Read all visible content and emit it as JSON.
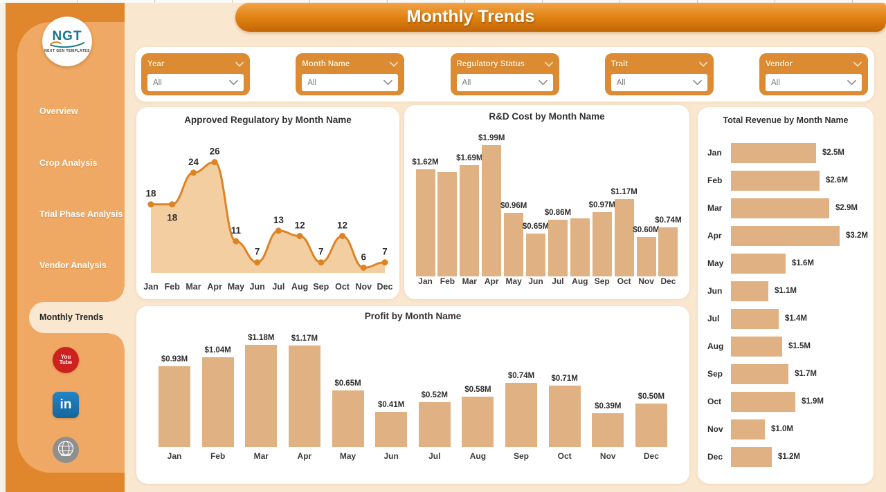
{
  "header": {
    "title": "Monthly Trends"
  },
  "sidebar": {
    "logo": {
      "text": "NGT",
      "subtext": "NEXT GEN TEMPLATES"
    },
    "items": [
      {
        "label": "Overview",
        "active": false
      },
      {
        "label": "Crop Analysis",
        "active": false
      },
      {
        "label": "Trial Phase Analysis",
        "active": false
      },
      {
        "label": "Vendor Analysis",
        "active": false
      },
      {
        "label": "Monthly Trends",
        "active": true
      }
    ],
    "social": [
      {
        "name": "youtube",
        "line1": "You",
        "line2": "Tube"
      },
      {
        "name": "linkedin",
        "label": "in"
      },
      {
        "name": "website",
        "label": "www"
      }
    ]
  },
  "filters": [
    {
      "label": "Year",
      "value": "All"
    },
    {
      "label": "Month Name",
      "value": "All"
    },
    {
      "label": "Regulatory Status",
      "value": "All"
    },
    {
      "label": "Trait",
      "value": "All"
    },
    {
      "label": "Vendor",
      "value": "All"
    }
  ],
  "months": [
    "Jan",
    "Feb",
    "Mar",
    "Apr",
    "May",
    "Jun",
    "Jul",
    "Aug",
    "Sep",
    "Oct",
    "Nov",
    "Dec"
  ],
  "chart_data": [
    {
      "type": "line",
      "title": "Approved Regulatory by Month Name",
      "categories": [
        "Jan",
        "Feb",
        "Mar",
        "Apr",
        "May",
        "Jun",
        "Jul",
        "Aug",
        "Sep",
        "Oct",
        "Nov",
        "Dec"
      ],
      "values": [
        18,
        18,
        24,
        26,
        11,
        7,
        13,
        12,
        7,
        12,
        6,
        7
      ],
      "label_position": [
        "above",
        "below",
        "above",
        "above",
        "above",
        "above",
        "above",
        "above",
        "above",
        "above",
        "above",
        "above"
      ],
      "ylim": [
        5,
        27
      ],
      "style": "smooth area with point markers, data labels, no gridlines, no y-axis"
    },
    {
      "type": "bar",
      "title": "R&D Cost by Month Name",
      "categories": [
        "Jan",
        "Feb",
        "Mar",
        "Apr",
        "May",
        "Jun",
        "Jul",
        "Aug",
        "Sep",
        "Oct",
        "Nov",
        "Dec"
      ],
      "values": [
        1.62,
        1.58,
        1.69,
        1.99,
        0.96,
        0.65,
        0.86,
        0.88,
        0.97,
        1.17,
        0.6,
        0.74
      ],
      "labels": [
        "$1.62M",
        "",
        "$1.69M",
        "$1.99M",
        "$0.96M",
        "$0.65M",
        "$0.86M",
        "",
        "$0.97M",
        "$1.17M",
        "$0.60M",
        "$0.74M"
      ],
      "ylim": [
        0,
        2.1
      ],
      "note": "Feb and Aug data labels hidden in source visual"
    },
    {
      "type": "bar-horizontal",
      "title": "Total Revenue by Month Name",
      "categories": [
        "Jan",
        "Feb",
        "Mar",
        "Apr",
        "May",
        "Jun",
        "Jul",
        "Aug",
        "Sep",
        "Oct",
        "Nov",
        "Dec"
      ],
      "values": [
        2.5,
        2.6,
        2.9,
        3.2,
        1.6,
        1.1,
        1.4,
        1.5,
        1.7,
        1.9,
        1.0,
        1.2
      ],
      "labels": [
        "$2.5M",
        "$2.6M",
        "$2.9M",
        "$3.2M",
        "$1.6M",
        "$1.1M",
        "$1.4M",
        "$1.5M",
        "$1.7M",
        "$1.9M",
        "$1.0M",
        "$1.2M"
      ],
      "xlim": [
        0,
        3.4
      ]
    },
    {
      "type": "bar",
      "title": "Profit by Month Name",
      "categories": [
        "Jan",
        "Feb",
        "Mar",
        "Apr",
        "May",
        "Jun",
        "Jul",
        "Aug",
        "Sep",
        "Oct",
        "Nov",
        "Dec"
      ],
      "values": [
        0.93,
        1.04,
        1.18,
        1.17,
        0.65,
        0.41,
        0.52,
        0.58,
        0.74,
        0.71,
        0.39,
        0.5
      ],
      "labels": [
        "$0.93M",
        "$1.04M",
        "$1.18M",
        "$1.17M",
        "$0.65M",
        "$0.41M",
        "$0.52M",
        "$0.58M",
        "$0.74M",
        "$0.71M",
        "$0.39M",
        "$0.50M"
      ],
      "ylim": [
        0,
        1.3
      ]
    }
  ],
  "colors": {
    "background": "#FAE7CF",
    "sidebar_outer": "#E0872E",
    "sidebar_inner": "#F0A964",
    "banner_top": "#F3A349",
    "banner_bottom": "#C2660A",
    "filter_box": "#DD8B33",
    "bar_fill": "#DFB183",
    "line": "#DE8324",
    "area_fill": "#F2CEA1",
    "label_text": "#2E2E2E",
    "youtube_red": "#CC211F",
    "linkedin_blue": "#1E78B8",
    "website_gray": "#8F8F8F"
  }
}
